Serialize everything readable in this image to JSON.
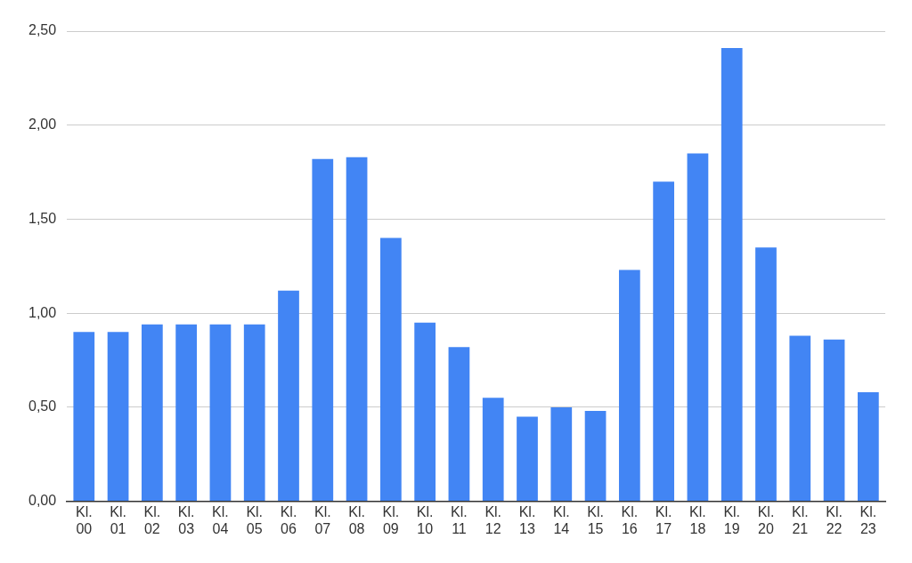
{
  "chart_data": {
    "type": "bar",
    "categories": [
      "Kl. 00",
      "Kl. 01",
      "Kl. 02",
      "Kl. 03",
      "Kl. 04",
      "Kl. 05",
      "Kl. 06",
      "Kl. 07",
      "Kl. 08",
      "Kl. 09",
      "Kl. 10",
      "Kl. 11",
      "Kl. 12",
      "Kl. 13",
      "Kl. 14",
      "Kl. 15",
      "Kl. 16",
      "Kl. 17",
      "Kl. 18",
      "Kl. 19",
      "Kl. 20",
      "Kl. 21",
      "Kl. 22",
      "Kl. 23"
    ],
    "values": [
      0.9,
      0.9,
      0.94,
      0.94,
      0.94,
      0.94,
      1.12,
      1.82,
      1.83,
      1.4,
      0.95,
      0.82,
      0.55,
      0.45,
      0.5,
      0.48,
      1.23,
      1.7,
      1.85,
      2.41,
      1.35,
      0.88,
      0.86,
      0.58
    ],
    "color": "#4285f4",
    "ylim": [
      0,
      2.5
    ],
    "yticks": [
      {
        "value": 0,
        "label": "0,00"
      },
      {
        "value": 0.5,
        "label": "0,50"
      },
      {
        "value": 1,
        "label": "1,00"
      },
      {
        "value": 1.5,
        "label": "1,50"
      },
      {
        "value": 2,
        "label": "2,00"
      },
      {
        "value": 2.5,
        "label": "2,50"
      }
    ],
    "grid": "y",
    "legend": false
  }
}
